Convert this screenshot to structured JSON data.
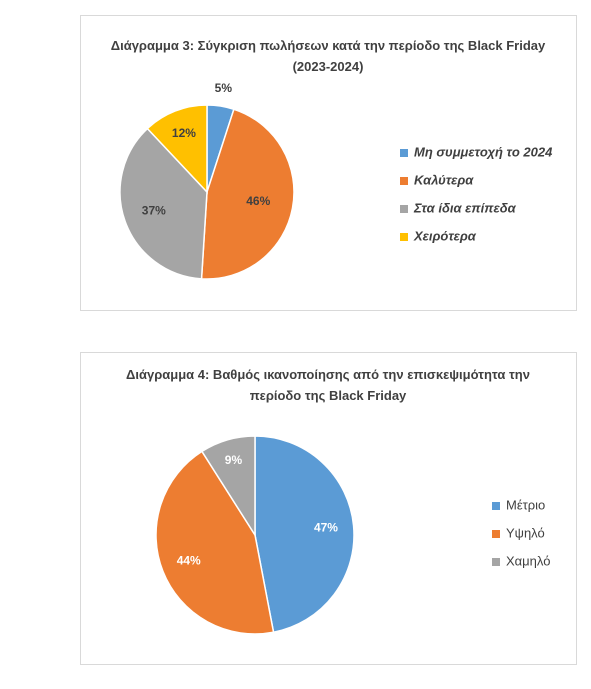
{
  "chart_data": [
    {
      "type": "pie",
      "title": "Διάγραμμα 3: Σύγκριση πωλήσεων κατά την περίοδο της Black Friday (2023-2024)",
      "categories": [
        "Μη συμμετοχή το 2024",
        "Καλύτερα",
        "Στα ίδια επίπεδα",
        "Χειρότερα"
      ],
      "values": [
        5,
        46,
        37,
        12
      ],
      "value_labels": [
        "5%",
        "46%",
        "37%",
        "12%"
      ],
      "colors": [
        "#5b9bd5",
        "#ed7d31",
        "#a5a5a5",
        "#ffc000"
      ],
      "label_color": "#404040",
      "legend": "right"
    },
    {
      "type": "pie",
      "title": "Διάγραμμα 4: Βαθμός ικανοποίησης από την επισκεψιμότητα την περίοδο της Black Friday",
      "categories": [
        "Μέτριο",
        "Υψηλό",
        "Χαμηλό"
      ],
      "values": [
        47,
        44,
        9
      ],
      "value_labels": [
        "47%",
        "44%",
        "9%"
      ],
      "colors": [
        "#5b9bd5",
        "#ed7d31",
        "#a5a5a5"
      ],
      "label_color": "#ffffff",
      "legend": "right"
    }
  ]
}
